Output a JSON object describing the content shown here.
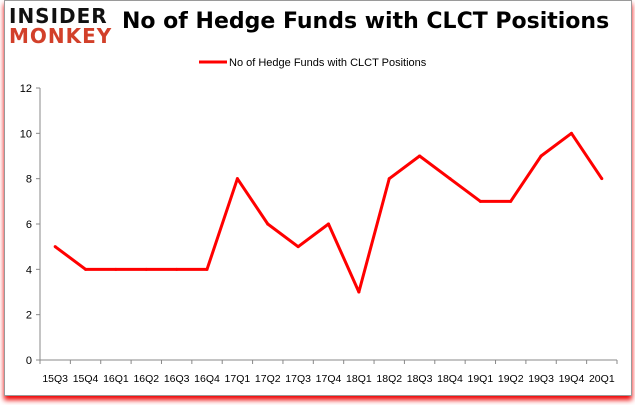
{
  "logo": {
    "line1": "INSIDER",
    "line2": "MONKEY"
  },
  "chart_data": {
    "type": "line",
    "title": "No of Hedge Funds with CLCT Positions",
    "categories": [
      "15Q3",
      "15Q4",
      "16Q1",
      "16Q2",
      "16Q3",
      "16Q4",
      "17Q1",
      "17Q2",
      "17Q3",
      "17Q4",
      "18Q1",
      "18Q2",
      "18Q3",
      "18Q4",
      "19Q1",
      "19Q2",
      "19Q3",
      "19Q4",
      "20Q1"
    ],
    "series": [
      {
        "name": "No of Hedge Funds with CLCT Positions",
        "values": [
          5,
          4,
          4,
          4,
          4,
          4,
          8,
          6,
          5,
          6,
          3,
          8,
          9,
          8,
          7,
          7,
          9,
          10,
          8
        ],
        "color": "#ff0000"
      }
    ],
    "ylim": [
      0,
      12
    ],
    "yticks": [
      0,
      2,
      4,
      6,
      8,
      10,
      12
    ],
    "grid": false,
    "legend": "top-center",
    "xlabel": "",
    "ylabel": ""
  }
}
